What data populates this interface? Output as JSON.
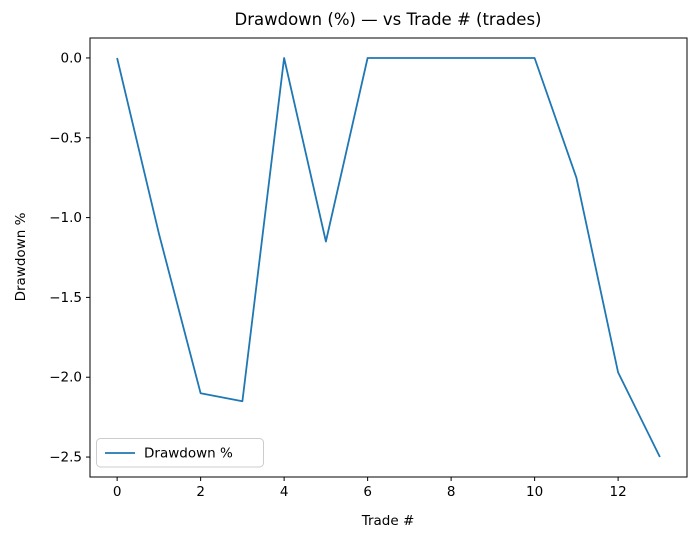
{
  "window": {
    "title": "Drawdown (%) — vs Trade # (trades)"
  },
  "chart_data": {
    "type": "line",
    "title": "Drawdown (%) — vs Trade # (trades)",
    "xlabel": "Trade #",
    "ylabel": "Drawdown %",
    "x": [
      0,
      1,
      2,
      3,
      4,
      5,
      6,
      7,
      8,
      9,
      10,
      11,
      12,
      13
    ],
    "series": [
      {
        "name": "Drawdown %",
        "values": [
          0.0,
          -1.1,
          -2.1,
          -2.15,
          0.0,
          -1.15,
          0.0,
          0.0,
          0.0,
          0.0,
          0.0,
          -0.75,
          -1.97,
          -2.5
        ],
        "color": "#1f77b4",
        "line_width": 1.8
      }
    ],
    "xlim": [
      -0.65,
      13.65
    ],
    "ylim": [
      -2.625,
      0.125
    ],
    "xticks": {
      "values": [
        0,
        2,
        4,
        6,
        8,
        10,
        12
      ],
      "labels": [
        "0",
        "2",
        "4",
        "6",
        "8",
        "10",
        "12"
      ]
    },
    "yticks": {
      "values": [
        0,
        -0.5,
        -1,
        -1.5,
        -2,
        -2.5
      ],
      "labels": [
        "0.0",
        "−0.5",
        "−1.0",
        "−1.5",
        "−2.0",
        "−2.5"
      ]
    },
    "grid": false,
    "legend": {
      "position": "lower left",
      "entries": [
        "Drawdown %"
      ]
    }
  },
  "colors": {
    "background": "#ffffff",
    "line": "#1f77b4",
    "spine": "#000000",
    "tick": "#000000",
    "text": "#000000",
    "legend_border": "#cccccc",
    "legend_background": "#ffffff"
  }
}
